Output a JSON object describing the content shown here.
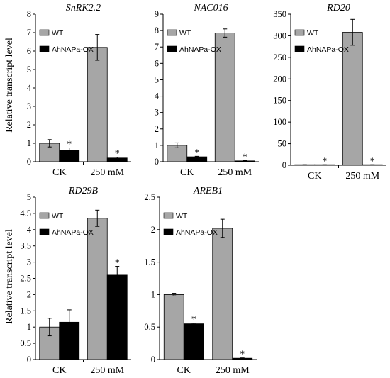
{
  "figure": {
    "ylabel": "Relative transcript level"
  },
  "chart_data": [
    {
      "type": "bar",
      "title": "SnRK2.2",
      "categories": [
        "CK",
        "250 mM"
      ],
      "ylim": [
        0,
        8
      ],
      "yticks": [
        "0",
        "1",
        "2",
        "3",
        "4",
        "5",
        "6",
        "7",
        "8"
      ],
      "series": [
        {
          "name": "WT",
          "color": "#a6a6a6",
          "values": [
            1.0,
            6.2
          ],
          "errors": [
            0.2,
            0.7
          ],
          "sig": [
            "",
            ""
          ]
        },
        {
          "name": "AhNAPa-OX",
          "color": "#000000",
          "values": [
            0.6,
            0.2
          ],
          "errors": [
            0.15,
            0.05
          ],
          "sig": [
            "*",
            "*"
          ]
        }
      ],
      "legend": "top-left"
    },
    {
      "type": "bar",
      "title": "NAC016",
      "categories": [
        "CK",
        "250 mM"
      ],
      "ylim": [
        0,
        9
      ],
      "yticks": [
        "0",
        "1",
        "2",
        "3",
        "4",
        "5",
        "6",
        "7",
        "8",
        "9"
      ],
      "series": [
        {
          "name": "WT",
          "color": "#a6a6a6",
          "values": [
            1.0,
            7.85
          ],
          "errors": [
            0.15,
            0.25
          ],
          "sig": [
            "",
            ""
          ]
        },
        {
          "name": "AhNAPa-OX",
          "color": "#000000",
          "values": [
            0.3,
            0.05
          ],
          "errors": [
            0.03,
            0.02
          ],
          "sig": [
            "*",
            "*"
          ]
        }
      ],
      "legend": "top-left"
    },
    {
      "type": "bar",
      "title": "RD20",
      "categories": [
        "CK",
        "250 mM"
      ],
      "ylim": [
        0,
        350
      ],
      "yticks": [
        "0",
        "50",
        "100",
        "150",
        "200",
        "250",
        "300",
        "350"
      ],
      "series": [
        {
          "name": "WT",
          "color": "#a6a6a6",
          "values": [
            1,
            308
          ],
          "errors": [
            0.3,
            30
          ],
          "sig": [
            "",
            ""
          ]
        },
        {
          "name": "AhNAPa-OX",
          "color": "#000000",
          "values": [
            1,
            1
          ],
          "errors": [
            0.2,
            0.2
          ],
          "sig": [
            "*",
            "*"
          ]
        }
      ],
      "legend": "top-left"
    },
    {
      "type": "bar",
      "title": "RD29B",
      "categories": [
        "CK",
        "250 mM"
      ],
      "ylim": [
        0,
        5
      ],
      "yticks": [
        "0",
        "0.5",
        "1",
        "1.5",
        "2",
        "2.5",
        "3",
        "3.5",
        "4",
        "4.5",
        "5"
      ],
      "series": [
        {
          "name": "WT",
          "color": "#a6a6a6",
          "values": [
            1.0,
            4.35
          ],
          "errors": [
            0.27,
            0.25
          ],
          "sig": [
            "",
            ""
          ]
        },
        {
          "name": "AhNAPa-OX",
          "color": "#000000",
          "values": [
            1.15,
            2.6
          ],
          "errors": [
            0.38,
            0.27
          ],
          "sig": [
            "",
            "*"
          ]
        }
      ],
      "legend": "top-left"
    },
    {
      "type": "bar",
      "title": "AREB1",
      "categories": [
        "CK",
        "250 mM"
      ],
      "ylim": [
        0,
        2.5
      ],
      "yticks": [
        "0",
        "0.5",
        "1",
        "1.5",
        "2",
        "2.5"
      ],
      "series": [
        {
          "name": "WT",
          "color": "#a6a6a6",
          "values": [
            1.0,
            2.02
          ],
          "errors": [
            0.02,
            0.14
          ],
          "sig": [
            "",
            ""
          ]
        },
        {
          "name": "AhNAPa-OX",
          "color": "#000000",
          "values": [
            0.55,
            0.02
          ],
          "errors": [
            0.01,
            0.005
          ],
          "sig": [
            "*",
            "*"
          ]
        }
      ],
      "legend": "top-left"
    }
  ]
}
